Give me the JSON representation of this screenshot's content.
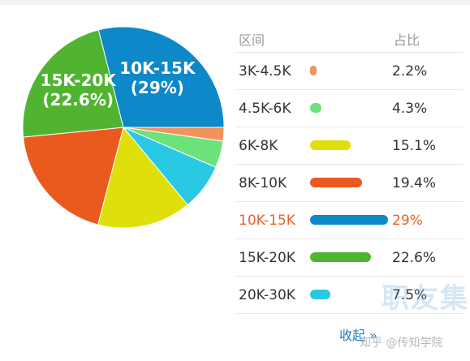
{
  "chart_data": {
    "type": "pie",
    "categories": [
      "3K-4.5K",
      "4.5K-6K",
      "6K-8K",
      "8K-10K",
      "10K-15K",
      "15K-20K",
      "20K-30K"
    ],
    "values": [
      2.2,
      4.3,
      15.1,
      19.4,
      29,
      22.6,
      7.5
    ],
    "value_labels": [
      "2.2%",
      "4.3%",
      "15.1%",
      "19.4%",
      "29%",
      "22.6%",
      "7.5%"
    ],
    "colors": [
      "#f3925a",
      "#6be27a",
      "#dfe00b",
      "#ea5a1e",
      "#0d88c9",
      "#50b430",
      "#29c8e3"
    ],
    "pie_labels": [
      {
        "index": 4,
        "name": "10K-15K",
        "value": "(29%)"
      },
      {
        "index": 5,
        "name": "15K-20K",
        "value": "(22.6%)"
      }
    ]
  },
  "table": {
    "header_range": "区间",
    "header_pct": "占比",
    "active_index": 4
  },
  "collapse_label": "收起 »",
  "watermark_text": "职友集",
  "source_watermark": "知乎 @传知学院"
}
